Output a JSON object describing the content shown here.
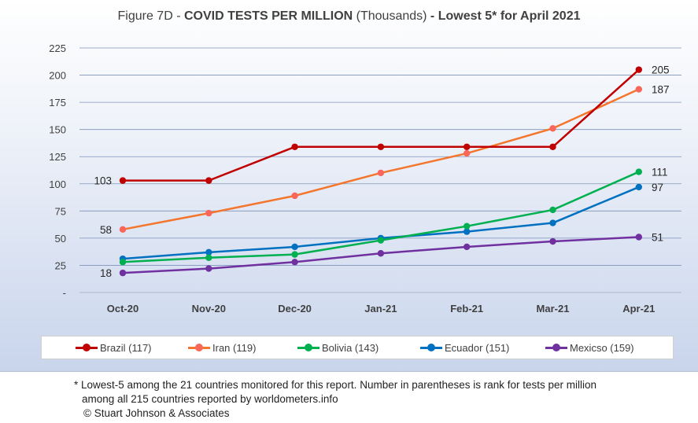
{
  "title": {
    "prefix": "Figure 7D - ",
    "bold1": "COVID TESTS PER MILLION",
    "middle": " (Thousands) ",
    "bold2": "- Lowest 5* for April 2021"
  },
  "chart_data": {
    "type": "line",
    "categories": [
      "Oct-20",
      "Nov-20",
      "Dec-20",
      "Jan-21",
      "Feb-21",
      "Mar-21",
      "Apr-21"
    ],
    "ylim": [
      0,
      225
    ],
    "yticks": [
      "-",
      "25",
      "50",
      "75",
      "100",
      "125",
      "150",
      "175",
      "200",
      "225"
    ],
    "grid": true,
    "legend_position": "bottom",
    "series": [
      {
        "name": "Brazil (117)",
        "color": "#c00000",
        "values": [
          103,
          103,
          134,
          134,
          134,
          134,
          205
        ],
        "label_start": "103",
        "label_end": "205"
      },
      {
        "name": "Iran (119)",
        "color": "#f4762d",
        "values": [
          58,
          73,
          89,
          110,
          128,
          151,
          187
        ],
        "label_start": "58",
        "label_end": "187"
      },
      {
        "name": "Bolivia (143)",
        "color": "#00b050",
        "values": [
          28,
          32,
          35,
          48,
          61,
          76,
          111
        ],
        "label_start": "",
        "label_end": "111"
      },
      {
        "name": "Ecuador (151)",
        "color": "#0070c0",
        "values": [
          31,
          37,
          42,
          50,
          56,
          64,
          97
        ],
        "label_start": "",
        "label_end": "97"
      },
      {
        "name": "Mexicso (159)",
        "color": "#7030a0",
        "values": [
          18,
          22,
          28,
          36,
          42,
          47,
          51
        ],
        "label_start": "18",
        "label_end": "51"
      }
    ]
  },
  "legend_colors": {
    "Brazil": "#c00000",
    "Iran": "#f4762d",
    "Bolivia": "#00b050",
    "Ecuador": "#0070c0",
    "Mexico": "#7030a0"
  },
  "marker_colors": {
    "Brazil": "#c00000",
    "Iran": "#f8675a",
    "Bolivia": "#00b050",
    "Ecuador": "#0070c0",
    "Mexico": "#7030a0"
  },
  "footnote": {
    "line1": "* Lowest-5 among the 21 countries monitored for this report. Number in parentheses is rank for tests per million",
    "line2": "among all 215 countries reported by worldometers.info",
    "line3": "© Stuart Johnson & Associates"
  }
}
